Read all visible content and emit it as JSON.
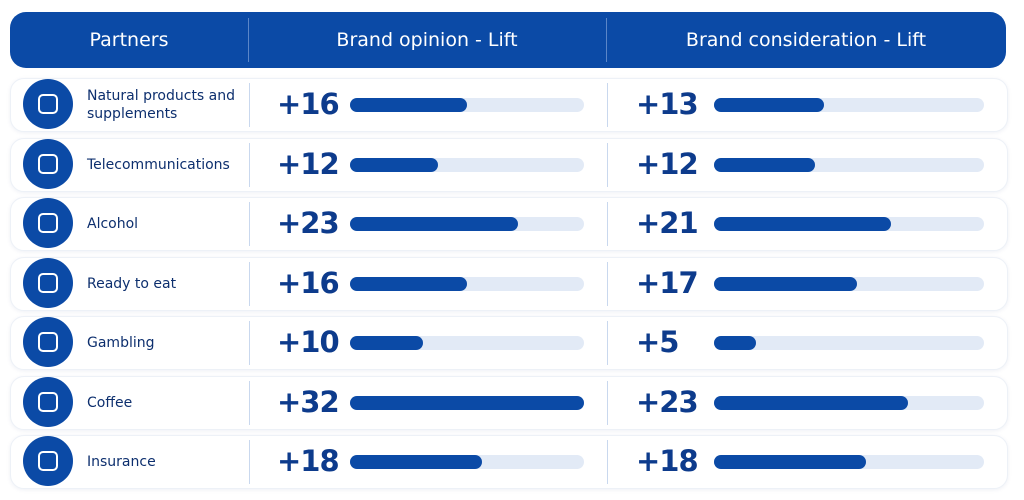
{
  "columns": [
    "Partners",
    "Brand opinion - Lift",
    "Brand consideration - Lift"
  ],
  "partners": [
    "Natural products and supplements",
    "Telecommunications",
    "Alcohol",
    "Ready to eat",
    "Gambling",
    "Coffee",
    "Insurance"
  ],
  "series": [
    {
      "name": "Brand opinion - Lift",
      "values": [
        16,
        12,
        23,
        16,
        10,
        32,
        18
      ],
      "value_labels": [
        "+16",
        "+12",
        "+23",
        "+16",
        "+10",
        "+32",
        "+18"
      ]
    },
    {
      "name": "Brand consideration - Lift",
      "values": [
        13,
        12,
        21,
        17,
        5,
        23,
        18
      ],
      "value_labels": [
        "+13",
        "+12",
        "+21",
        "+17",
        "+5",
        "+23",
        "+18"
      ]
    }
  ],
  "xlim": [
    0,
    32
  ]
}
